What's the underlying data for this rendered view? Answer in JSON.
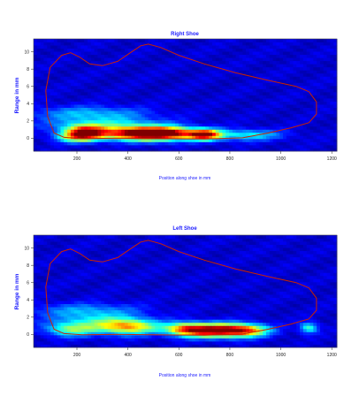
{
  "colors": {
    "label_text": "#1a1aff",
    "outline": "#cc2200",
    "colormap": [
      "#00007f",
      "#0000ff",
      "#007fff",
      "#00ffff",
      "#7fff7f",
      "#ffff00",
      "#ff7f00",
      "#ff0000",
      "#7f0000"
    ]
  },
  "chart_data": [
    {
      "type": "heatmap",
      "title": "Right Shoe",
      "xlabel": "Position along shoe in mm",
      "ylabel": "Range in mm",
      "xlim": [
        30,
        1220
      ],
      "ylim": [
        -1.5,
        11.5
      ],
      "xticks": [
        200,
        400,
        600,
        800,
        1000,
        1200
      ],
      "yticks": [
        0,
        2,
        4,
        6,
        8,
        10
      ],
      "grid": false,
      "hotspots": [
        {
          "x": 230,
          "y": 0.7,
          "sx": 55,
          "sy": 0.55,
          "v": 0.85
        },
        {
          "x": 480,
          "y": 0.55,
          "sx": 75,
          "sy": 0.55,
          "v": 0.95
        },
        {
          "x": 580,
          "y": 0.6,
          "sx": 60,
          "sy": 0.5,
          "v": 0.6
        },
        {
          "x": 700,
          "y": 0.45,
          "sx": 45,
          "sy": 0.45,
          "v": 0.85
        },
        {
          "x": 360,
          "y": 0.6,
          "sx": 70,
          "sy": 0.5,
          "v": 0.45
        },
        {
          "x": 860,
          "y": 0.4,
          "sx": 100,
          "sy": 0.45,
          "v": 0.3
        },
        {
          "x": 250,
          "y": 2.9,
          "sx": 160,
          "sy": 0.6,
          "v": 0.22
        },
        {
          "x": 320,
          "y": 1.6,
          "sx": 160,
          "sy": 0.6,
          "v": 0.25
        },
        {
          "x": 200,
          "y": 0.1,
          "sx": 60,
          "sy": 0.4,
          "v": 0.35
        }
      ],
      "outline": [
        [
          110,
          0.6
        ],
        [
          85,
          2.5
        ],
        [
          78,
          5.5
        ],
        [
          95,
          8.2
        ],
        [
          140,
          9.6
        ],
        [
          175,
          9.9
        ],
        [
          210,
          9.4
        ],
        [
          250,
          8.6
        ],
        [
          300,
          8.4
        ],
        [
          360,
          8.9
        ],
        [
          410,
          9.9
        ],
        [
          450,
          10.7
        ],
        [
          480,
          10.9
        ],
        [
          530,
          10.5
        ],
        [
          600,
          9.6
        ],
        [
          700,
          8.6
        ],
        [
          820,
          7.6
        ],
        [
          950,
          6.7
        ],
        [
          1060,
          6.0
        ],
        [
          1110,
          5.4
        ],
        [
          1140,
          4.2
        ],
        [
          1140,
          2.8
        ],
        [
          1110,
          1.8
        ],
        [
          1040,
          1.2
        ],
        [
          950,
          0.6
        ],
        [
          850,
          0.05
        ],
        [
          700,
          -0.1
        ],
        [
          500,
          -0.05
        ],
        [
          350,
          0.0
        ],
        [
          220,
          -0.05
        ],
        [
          150,
          0.1
        ],
        [
          110,
          0.6
        ]
      ]
    },
    {
      "type": "heatmap",
      "title": "Left Shoe",
      "xlabel": "Position along shoe in mm",
      "ylabel": "Range in mm",
      "xlim": [
        30,
        1220
      ],
      "ylim": [
        -1.5,
        11.5
      ],
      "xticks": [
        200,
        400,
        600,
        800,
        1000,
        1200
      ],
      "yticks": [
        0,
        2,
        4,
        6,
        8,
        10
      ],
      "grid": false,
      "hotspots": [
        {
          "x": 740,
          "y": 0.5,
          "sx": 95,
          "sy": 0.55,
          "v": 0.97
        },
        {
          "x": 400,
          "y": 0.9,
          "sx": 85,
          "sy": 0.6,
          "v": 0.6
        },
        {
          "x": 180,
          "y": 0.6,
          "sx": 70,
          "sy": 0.55,
          "v": 0.4
        },
        {
          "x": 620,
          "y": 0.7,
          "sx": 50,
          "sy": 0.5,
          "v": 0.4
        },
        {
          "x": 870,
          "y": 0.5,
          "sx": 60,
          "sy": 0.5,
          "v": 0.45
        },
        {
          "x": 1110,
          "y": 0.8,
          "sx": 25,
          "sy": 0.45,
          "v": 0.35
        },
        {
          "x": 240,
          "y": 2.8,
          "sx": 150,
          "sy": 0.6,
          "v": 0.2
        },
        {
          "x": 280,
          "y": 1.6,
          "sx": 120,
          "sy": 0.6,
          "v": 0.22
        }
      ],
      "outline": [
        [
          110,
          0.6
        ],
        [
          85,
          2.5
        ],
        [
          78,
          5.5
        ],
        [
          95,
          8.2
        ],
        [
          140,
          9.6
        ],
        [
          175,
          9.9
        ],
        [
          210,
          9.4
        ],
        [
          250,
          8.6
        ],
        [
          300,
          8.4
        ],
        [
          360,
          8.9
        ],
        [
          410,
          9.9
        ],
        [
          450,
          10.7
        ],
        [
          480,
          10.9
        ],
        [
          530,
          10.5
        ],
        [
          600,
          9.6
        ],
        [
          700,
          8.6
        ],
        [
          820,
          7.6
        ],
        [
          950,
          6.7
        ],
        [
          1060,
          6.0
        ],
        [
          1110,
          5.4
        ],
        [
          1140,
          4.2
        ],
        [
          1140,
          2.8
        ],
        [
          1110,
          1.8
        ],
        [
          1040,
          1.2
        ],
        [
          950,
          0.6
        ],
        [
          850,
          0.05
        ],
        [
          700,
          -0.1
        ],
        [
          500,
          -0.05
        ],
        [
          350,
          0.0
        ],
        [
          220,
          -0.05
        ],
        [
          150,
          0.1
        ],
        [
          110,
          0.6
        ]
      ]
    }
  ]
}
